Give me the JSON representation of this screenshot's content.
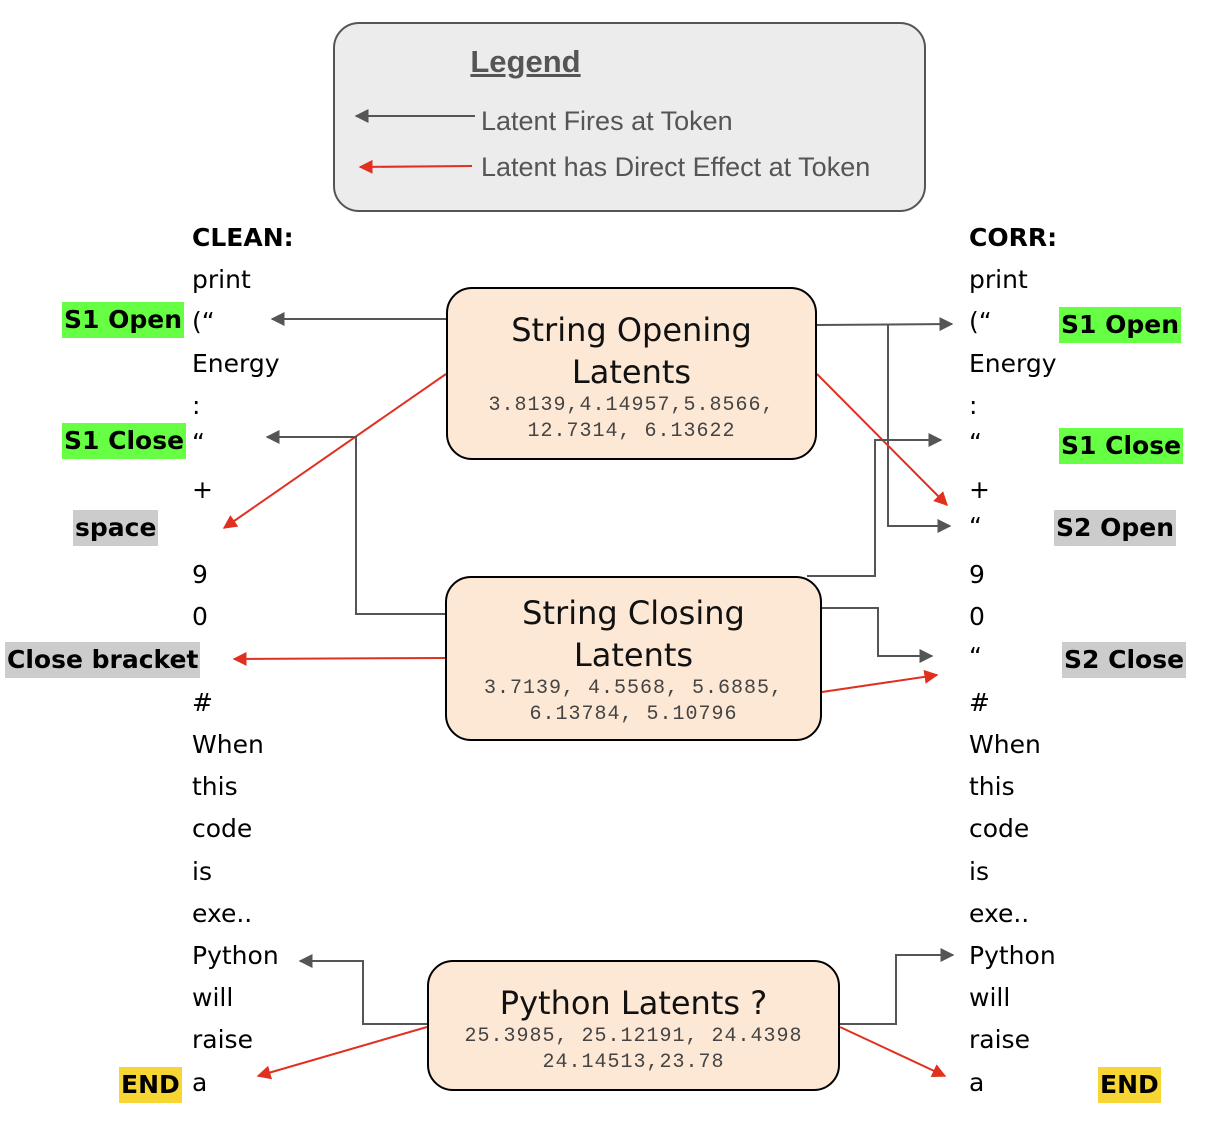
{
  "legend": {
    "title": "Legend",
    "fires": "Latent Fires at Token",
    "direct": "Latent has Direct Effect at Token"
  },
  "clean": {
    "header": "CLEAN:",
    "tokens": [
      "print",
      "(“",
      "Energy",
      ":",
      "“",
      "+",
      "9",
      "0",
      ")",
      "#",
      "When",
      "this",
      "code",
      "is",
      "exe..",
      "Python",
      "will",
      "raise",
      "a"
    ]
  },
  "corr": {
    "header": "CORR:",
    "tokens": [
      "print",
      "(“",
      "Energy",
      ":",
      "“",
      "+",
      "“",
      "9",
      "0",
      "“",
      "#",
      "When",
      "this",
      "code",
      "is",
      "exe..",
      "Python",
      "will",
      "raise",
      "a"
    ]
  },
  "labels": {
    "clean_s1_open": "S1 Open",
    "clean_s1_close": "S1 Close",
    "clean_space": "space",
    "clean_close_bracket": "Close bracket",
    "clean_end": "END",
    "corr_s1_open": "S1 Open",
    "corr_s1_close": "S1 Close",
    "corr_s2_open": "S2 Open",
    "corr_s2_close": "S2 Close",
    "corr_end": "END"
  },
  "nodes": {
    "opening": {
      "title_1": "String Opening",
      "title_2": "Latents",
      "values_1": "3.8139,4.14957,5.8566,",
      "values_2": "12.7314, 6.13622"
    },
    "closing": {
      "title_1": "String Closing",
      "title_2": "Latents",
      "values_1": "3.7139, 4.5568, 5.6885,",
      "values_2": "6.13784, 5.10796"
    },
    "python": {
      "title_1": "Python Latents ?",
      "values_1": "25.3985, 25.12191, 24.4398",
      "values_2": "24.14513,23.78"
    }
  },
  "colors": {
    "fires_arrow": "#555555",
    "direct_arrow": "#e03020",
    "green": "#66ff44",
    "gray": "#cccccc",
    "yellow": "#f7d633",
    "node_fill": "#fce8d5"
  }
}
